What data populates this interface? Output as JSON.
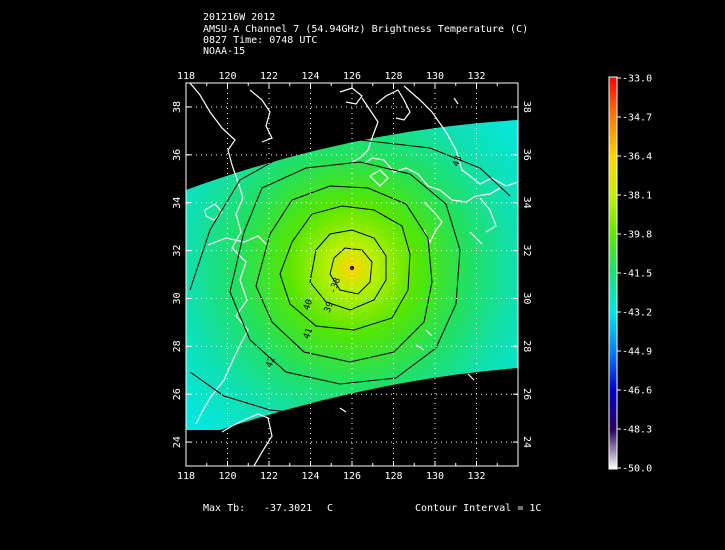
{
  "header": {
    "line1": "201216W 2012",
    "line2": "AMSU-A Channel 7 (54.94GHz) Brightness Temperature (C)",
    "line3": "0827 Time: 0748 UTC",
    "line4": "NOAA-15"
  },
  "map": {
    "lon_ticks": [
      "118",
      "120",
      "122",
      "124",
      "126",
      "128",
      "130",
      "132"
    ],
    "lat_ticks": [
      "24",
      "26",
      "28",
      "30",
      "32",
      "34",
      "36",
      "38"
    ],
    "lon_range": [
      118,
      134
    ],
    "lat_range": [
      23,
      39
    ],
    "contour_labels": [
      {
        "text": "-38",
        "lon": 125.3,
        "lat": 30.5
      },
      {
        "text": "39",
        "lon": 125.0,
        "lat": 29.6
      },
      {
        "text": "40",
        "lon": 124.0,
        "lat": 29.7
      },
      {
        "text": "41",
        "lon": 124.0,
        "lat": 28.5
      },
      {
        "text": "42",
        "lon": 122.2,
        "lat": 27.3
      },
      {
        "text": "43",
        "lon": 131.2,
        "lat": 35.7
      }
    ],
    "storm_center": {
      "lon": 126.0,
      "lat": 30.7
    }
  },
  "colorbar": {
    "labels": [
      "-33.0",
      "-34.7",
      "-36.4",
      "-38.1",
      "-39.8",
      "-41.5",
      "-43.2",
      "-44.9",
      "-46.6",
      "-48.3",
      "-50.0"
    ],
    "colors": [
      "#ff0000",
      "#ff7a00",
      "#ffd200",
      "#c8f000",
      "#5fe800",
      "#19e07a",
      "#00e8e8",
      "#0080ff",
      "#0000cc",
      "#2a0060",
      "#ffffff"
    ]
  },
  "footer": {
    "max_tb_label": "Max Tb:",
    "max_tb_value": "-37.3021",
    "max_tb_unit": "C",
    "contour_interval": "Contour Interval = 1C"
  }
}
